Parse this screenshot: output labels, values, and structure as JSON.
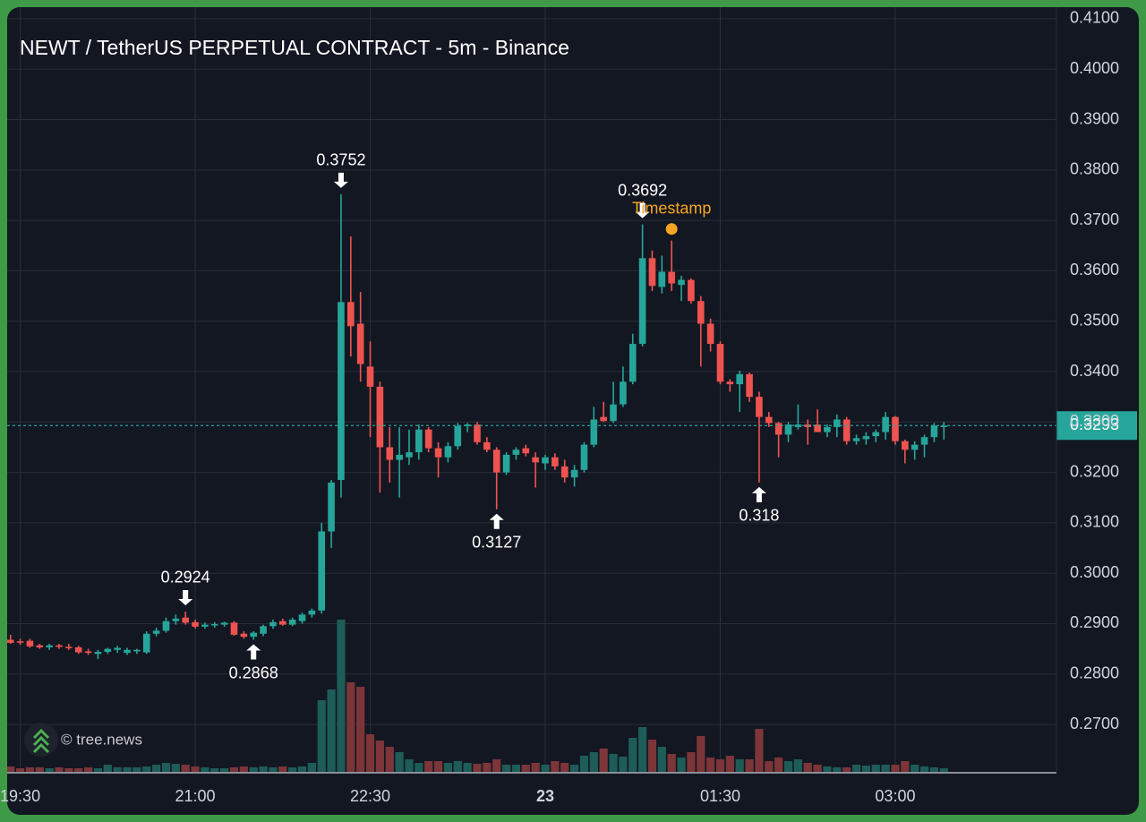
{
  "chart_data": {
    "type": "candlestick",
    "title": "NEWT / TetherUS PERPETUAL CONTRACT - 5m - Binance",
    "watermark": "© tree.news",
    "x": [
      "19:25",
      "19:30",
      "19:35",
      "19:40",
      "19:45",
      "19:50",
      "19:55",
      "20:00",
      "20:05",
      "20:10",
      "20:15",
      "20:20",
      "20:25",
      "20:30",
      "20:35",
      "20:40",
      "20:45",
      "20:50",
      "20:55",
      "21:00",
      "21:05",
      "21:10",
      "21:15",
      "21:20",
      "21:25",
      "21:30",
      "21:35",
      "21:40",
      "21:45",
      "21:50",
      "21:55",
      "22:00",
      "22:05",
      "22:10",
      "22:15",
      "22:20",
      "22:25",
      "22:30",
      "22:35",
      "22:40",
      "22:45",
      "22:50",
      "22:55",
      "23:00",
      "23:05",
      "23:10",
      "23:15",
      "23:20",
      "23:25",
      "23:30",
      "23:35",
      "23:40",
      "23:45",
      "23:50",
      "23:55",
      "00:00",
      "00:05",
      "00:10",
      "00:15",
      "00:20",
      "00:25",
      "00:30",
      "00:35",
      "00:40",
      "00:45",
      "00:50",
      "00:55",
      "01:00",
      "01:05",
      "01:10",
      "01:15",
      "01:20",
      "01:25",
      "01:30",
      "01:35",
      "01:40",
      "01:45",
      "01:50",
      "01:55",
      "02:00",
      "02:05",
      "02:10",
      "02:15",
      "02:20",
      "02:25",
      "02:30",
      "02:35",
      "02:40",
      "02:45",
      "02:50",
      "02:55",
      "03:00",
      "03:05",
      "03:10",
      "03:15",
      "03:20",
      "03:25"
    ],
    "open": [
      0.2868,
      0.2865,
      0.2866,
      0.2857,
      0.2853,
      0.2857,
      0.2854,
      0.2853,
      0.2845,
      0.284,
      0.2844,
      0.2848,
      0.2842,
      0.2845,
      0.2843,
      0.288,
      0.2886,
      0.2905,
      0.2912,
      0.2903,
      0.2894,
      0.2897,
      0.2898,
      0.2902,
      0.288,
      0.2874,
      0.288,
      0.2895,
      0.2905,
      0.2898,
      0.2905,
      0.2918,
      0.2926,
      0.3083,
      0.3185,
      0.3538,
      0.3495,
      0.341,
      0.337,
      0.325,
      0.3225,
      0.323,
      0.324,
      0.3285,
      0.3248,
      0.323,
      0.3252,
      0.3292,
      0.3295,
      0.326,
      0.3245,
      0.32,
      0.3235,
      0.3248,
      0.323,
      0.3218,
      0.323,
      0.3212,
      0.319,
      0.3205,
      0.3255,
      0.331,
      0.3302,
      0.3335,
      0.338,
      0.3455,
      0.3625,
      0.3568,
      0.3598,
      0.3572,
      0.3582,
      0.354,
      0.3495,
      0.3455,
      0.338,
      0.3375,
      0.3395,
      0.335,
      0.331,
      0.3298,
      0.3275,
      0.329,
      0.3295,
      0.3295,
      0.328,
      0.329,
      0.3305,
      0.3262,
      0.3266,
      0.3272,
      0.328,
      0.331,
      0.3262,
      0.3245,
      0.3255,
      0.327,
      0.329
    ],
    "high": [
      0.2878,
      0.287,
      0.287,
      0.286,
      0.286,
      0.286,
      0.286,
      0.2856,
      0.285,
      0.2848,
      0.2852,
      0.2856,
      0.2852,
      0.285,
      0.2885,
      0.2892,
      0.2912,
      0.2918,
      0.2924,
      0.2908,
      0.2902,
      0.2903,
      0.2904,
      0.2905,
      0.2885,
      0.2885,
      0.2898,
      0.2908,
      0.291,
      0.2912,
      0.2922,
      0.293,
      0.31,
      0.3185,
      0.3752,
      0.3668,
      0.3558,
      0.346,
      0.338,
      0.329,
      0.329,
      0.3285,
      0.3295,
      0.329,
      0.326,
      0.326,
      0.3298,
      0.3298,
      0.33,
      0.327,
      0.325,
      0.324,
      0.325,
      0.3255,
      0.324,
      0.3235,
      0.3238,
      0.3225,
      0.3215,
      0.326,
      0.333,
      0.334,
      0.338,
      0.341,
      0.3475,
      0.3692,
      0.364,
      0.363,
      0.366,
      0.359,
      0.3585,
      0.355,
      0.3505,
      0.346,
      0.3385,
      0.3402,
      0.3398,
      0.336,
      0.332,
      0.33,
      0.33,
      0.3335,
      0.3305,
      0.3325,
      0.3295,
      0.3315,
      0.331,
      0.3275,
      0.328,
      0.3285,
      0.332,
      0.3312,
      0.3265,
      0.3262,
      0.3275,
      0.3298,
      0.33
    ],
    "low": [
      0.286,
      0.2858,
      0.2852,
      0.285,
      0.2848,
      0.285,
      0.2848,
      0.284,
      0.2838,
      0.283,
      0.284,
      0.2842,
      0.2838,
      0.284,
      0.284,
      0.2875,
      0.2882,
      0.2898,
      0.2898,
      0.289,
      0.289,
      0.2892,
      0.2894,
      0.2876,
      0.287,
      0.2868,
      0.2875,
      0.289,
      0.2896,
      0.2895,
      0.29,
      0.2912,
      0.292,
      0.305,
      0.315,
      0.343,
      0.338,
      0.327,
      0.316,
      0.318,
      0.315,
      0.3215,
      0.3225,
      0.324,
      0.319,
      0.322,
      0.3245,
      0.328,
      0.3255,
      0.324,
      0.3127,
      0.3195,
      0.3225,
      0.3232,
      0.317,
      0.3205,
      0.3205,
      0.318,
      0.3172,
      0.32,
      0.325,
      0.33,
      0.3298,
      0.333,
      0.3375,
      0.345,
      0.356,
      0.3555,
      0.356,
      0.354,
      0.3535,
      0.341,
      0.344,
      0.3375,
      0.336,
      0.332,
      0.334,
      0.318,
      0.329,
      0.323,
      0.326,
      0.3285,
      0.3255,
      0.328,
      0.327,
      0.327,
      0.3255,
      0.3255,
      0.3255,
      0.326,
      0.3265,
      0.3255,
      0.3218,
      0.3225,
      0.323,
      0.326,
      0.3265
    ],
    "close": [
      0.2862,
      0.2863,
      0.2855,
      0.2853,
      0.2857,
      0.2854,
      0.2852,
      0.2843,
      0.2842,
      0.2844,
      0.285,
      0.2852,
      0.2848,
      0.2848,
      0.288,
      0.2886,
      0.2905,
      0.291,
      0.2902,
      0.2894,
      0.2898,
      0.2899,
      0.2902,
      0.2878,
      0.2874,
      0.2882,
      0.2895,
      0.2903,
      0.2898,
      0.2908,
      0.2918,
      0.2926,
      0.3083,
      0.318,
      0.3538,
      0.349,
      0.3415,
      0.337,
      0.325,
      0.3225,
      0.3235,
      0.324,
      0.3285,
      0.3248,
      0.323,
      0.3252,
      0.3292,
      0.3295,
      0.326,
      0.3245,
      0.32,
      0.3235,
      0.3245,
      0.3238,
      0.322,
      0.323,
      0.3212,
      0.319,
      0.3205,
      0.3255,
      0.3305,
      0.3302,
      0.3335,
      0.338,
      0.3455,
      0.3625,
      0.357,
      0.3598,
      0.3575,
      0.3582,
      0.354,
      0.3495,
      0.3455,
      0.338,
      0.3375,
      0.3395,
      0.335,
      0.331,
      0.3298,
      0.3275,
      0.3295,
      0.3295,
      0.329,
      0.328,
      0.329,
      0.3305,
      0.3262,
      0.3268,
      0.3272,
      0.328,
      0.331,
      0.3262,
      0.3245,
      0.3255,
      0.327,
      0.3293,
      0.3293
    ],
    "volume": [
      6,
      4,
      5,
      5,
      4,
      5,
      4,
      4,
      5,
      4,
      8,
      5,
      5,
      5,
      6,
      8,
      10,
      9,
      8,
      6,
      5,
      4,
      4,
      5,
      6,
      5,
      6,
      5,
      6,
      5,
      6,
      10,
      80,
      92,
      170,
      100,
      95,
      42,
      35,
      28,
      22,
      14,
      10,
      12,
      12,
      10,
      12,
      10,
      9,
      10,
      14,
      8,
      8,
      8,
      10,
      8,
      12,
      10,
      8,
      18,
      22,
      26,
      20,
      17,
      38,
      50,
      36,
      28,
      20,
      16,
      22,
      40,
      16,
      14,
      18,
      14,
      14,
      48,
      12,
      16,
      12,
      14,
      10,
      8,
      6,
      5,
      5,
      8,
      7,
      8,
      8,
      8,
      12,
      8,
      6,
      5,
      4
    ],
    "up_color": "#26a69a",
    "down_color": "#ef5350",
    "volume_up_color": "#1d5c57",
    "volume_down_color": "#7c3538",
    "ylim": [
      0.2606,
      0.4123
    ],
    "yticks": [
      {
        "value": 0.27,
        "label": "0.2700"
      },
      {
        "value": 0.28,
        "label": "0.2800"
      },
      {
        "value": 0.29,
        "label": "0.2900"
      },
      {
        "value": 0.3,
        "label": "0.3000"
      },
      {
        "value": 0.31,
        "label": "0.3100"
      },
      {
        "value": 0.32,
        "label": "0.3200"
      },
      {
        "value": 0.33,
        "label": "0.3300"
      },
      {
        "value": 0.34,
        "label": "0.3400"
      },
      {
        "value": 0.35,
        "label": "0.3500"
      },
      {
        "value": 0.36,
        "label": "0.3600"
      },
      {
        "value": 0.37,
        "label": "0.3700"
      },
      {
        "value": 0.38,
        "label": "0.3800"
      },
      {
        "value": 0.39,
        "label": "0.3900"
      },
      {
        "value": 0.4,
        "label": "0.4000"
      },
      {
        "value": 0.41,
        "label": "0.4100"
      }
    ],
    "xticks": [
      "19:30",
      "21:00",
      "22:30",
      {
        "value": "00:00",
        "label": "23",
        "bold": true
      },
      "01:30",
      "03:00"
    ],
    "grid": true,
    "last_price": 0.3293,
    "last_price_color": "#26a69a",
    "annotations": [
      {
        "x": "20:55",
        "value": 0.2924,
        "position": "above"
      },
      {
        "x": "21:30",
        "value": 0.2868,
        "position": "below"
      },
      {
        "x": "22:15",
        "value": 0.3752,
        "position": "above"
      },
      {
        "x": "23:35",
        "value": 0.3127,
        "position": "below"
      },
      {
        "x": "00:50",
        "value": 0.3692,
        "position": "above"
      },
      {
        "x": "01:50",
        "value": 0.318,
        "position": "below"
      }
    ],
    "marker": {
      "label": "Timestamp",
      "x": "01:05",
      "value": 0.3683,
      "color": "#f5a623"
    }
  }
}
